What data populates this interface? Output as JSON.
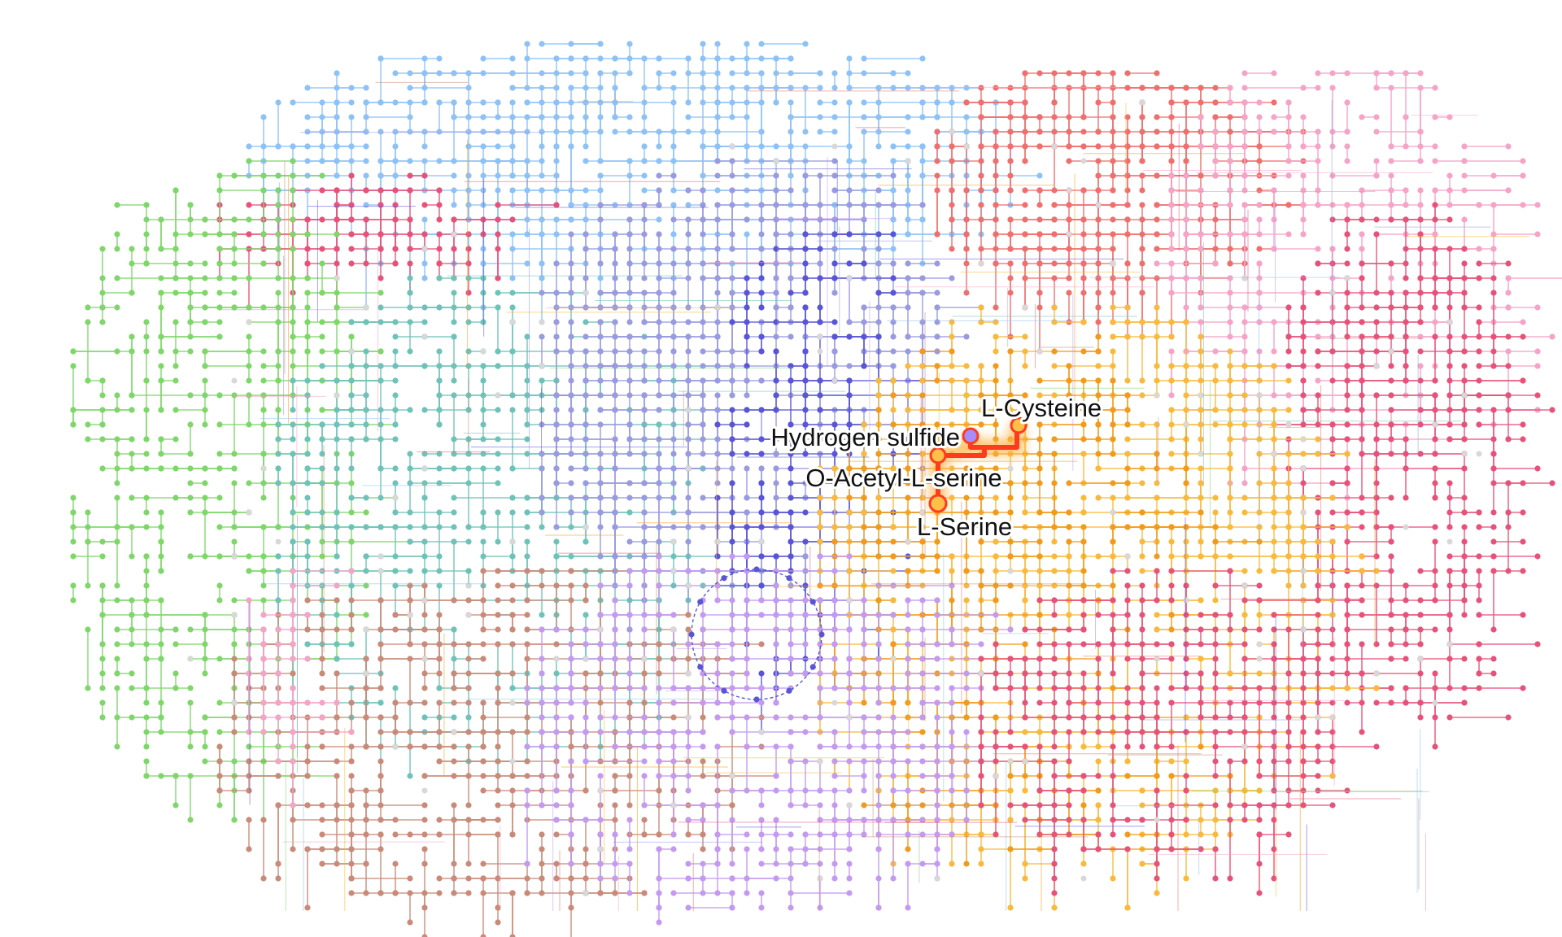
{
  "map": {
    "highlighted_pathway": {
      "compounds": [
        {
          "id": "h2s",
          "name": "Hydrogen sulfide"
        },
        {
          "id": "cys",
          "name": "L-Cysteine"
        },
        {
          "id": "oas",
          "name": "O-Acetyl-L-serine"
        },
        {
          "id": "ser",
          "name": "L-Serine"
        }
      ],
      "highlight_color": "#ff3b1f",
      "glow_color": "#ffb347"
    },
    "category_colors": {
      "carbohydrate": "#8ec1f5",
      "energy": "#9a9ae0",
      "lipid": "#6fc2b8",
      "nucleotide": "#e6527a",
      "amino_acid": "#f8b93c",
      "other_amino_acid": "#f29a1c",
      "glycan": "#c98a7a",
      "cofactor_vitamin": "#c39af0",
      "terpenoid": "#f5a3c7",
      "secondary_metabolite": "#ef6f6f",
      "xenobiotics": "#7fd66a",
      "core": "#5a55d6",
      "unassigned": "#d8d8d8"
    }
  }
}
